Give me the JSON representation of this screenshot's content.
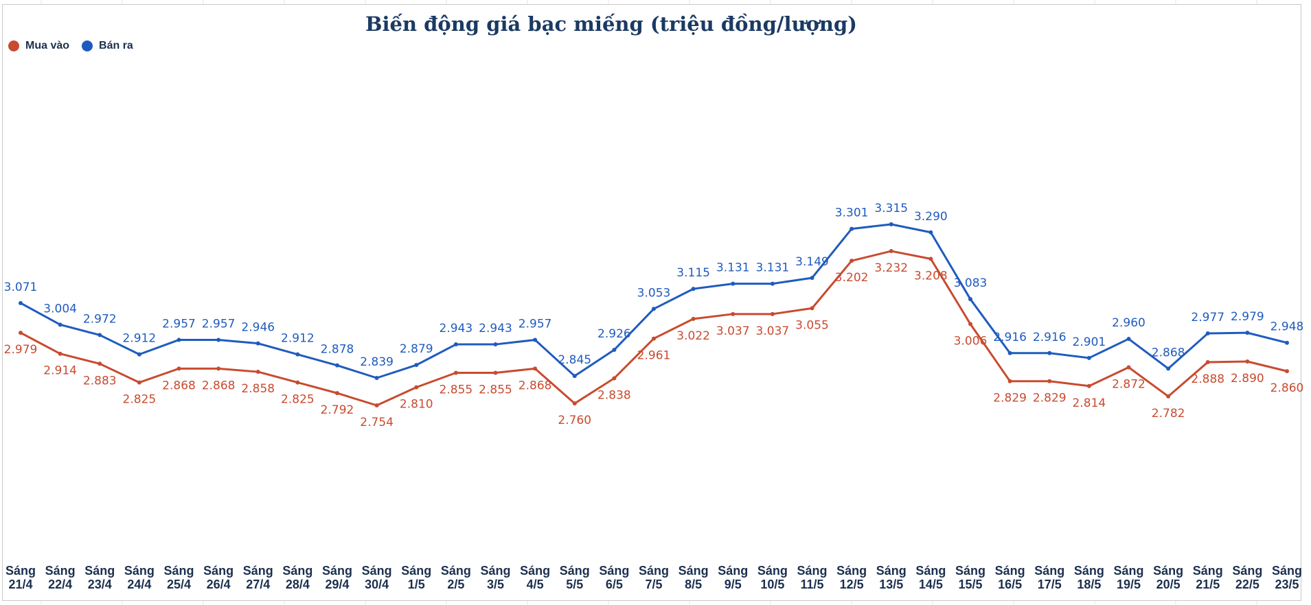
{
  "chart_data": {
    "type": "line",
    "title": "Biến động giá bạc miếng (triệu đồng/lượng)",
    "xlabel": "",
    "ylabel": "",
    "grid": false,
    "legend_position": "top-left",
    "categories": [
      [
        "Sáng",
        "21/4"
      ],
      [
        "Sáng",
        "22/4"
      ],
      [
        "Sáng",
        "23/4"
      ],
      [
        "Sáng",
        "24/4"
      ],
      [
        "Sáng",
        "25/4"
      ],
      [
        "Sáng",
        "26/4"
      ],
      [
        "Sáng",
        "27/4"
      ],
      [
        "Sáng",
        "28/4"
      ],
      [
        "Sáng",
        "29/4"
      ],
      [
        "Sáng",
        "30/4"
      ],
      [
        "Sáng",
        "1/5"
      ],
      [
        "Sáng",
        "2/5"
      ],
      [
        "Sáng",
        "3/5"
      ],
      [
        "Sáng",
        "4/5"
      ],
      [
        "Sáng",
        "5/5"
      ],
      [
        "Sáng",
        "6/5"
      ],
      [
        "Sáng",
        "7/5"
      ],
      [
        "Sáng",
        "8/5"
      ],
      [
        "Sáng",
        "9/5"
      ],
      [
        "Sáng",
        "10/5"
      ],
      [
        "Sáng",
        "11/5"
      ],
      [
        "Sáng",
        "12/5"
      ],
      [
        "Sáng",
        "13/5"
      ],
      [
        "Sáng",
        "14/5"
      ],
      [
        "Sáng",
        "15/5"
      ],
      [
        "Sáng",
        "16/5"
      ],
      [
        "Sáng",
        "17/5"
      ],
      [
        "Sáng",
        "18/5"
      ],
      [
        "Sáng",
        "19/5"
      ],
      [
        "Sáng",
        "20/5"
      ],
      [
        "Sáng",
        "21/5"
      ],
      [
        "Sáng",
        "22/5"
      ],
      [
        "Sáng",
        "23/5"
      ]
    ],
    "series": [
      {
        "name": "Mua vào",
        "color": "#c84b2f",
        "values": [
          2.979,
          2.914,
          2.883,
          2.825,
          2.868,
          2.868,
          2.858,
          2.825,
          2.792,
          2.754,
          2.81,
          2.855,
          2.855,
          2.868,
          2.76,
          2.838,
          2.961,
          3.022,
          3.037,
          3.037,
          3.055,
          3.202,
          3.232,
          3.208,
          3.006,
          2.829,
          2.829,
          2.814,
          2.872,
          2.782,
          2.888,
          2.89,
          2.86
        ],
        "labels": [
          "2.979",
          "2.914",
          "2.883",
          "2.825",
          "2.868",
          "2.868",
          "2.858",
          "2.825",
          "2.792",
          "2.754",
          "2.810",
          "2.855",
          "2.855",
          "2.868",
          "2.760",
          "2.838",
          "2.961",
          "3.022",
          "3.037",
          "3.037",
          "3.055",
          "3.202",
          "3.232",
          "3.208",
          "3.006",
          "2.829",
          "2.829",
          "2.814",
          "2.872",
          "2.782",
          "2.888",
          "2.890",
          "2.860"
        ]
      },
      {
        "name": "Bán ra",
        "color": "#1f5bbf",
        "values": [
          3.071,
          3.004,
          2.972,
          2.912,
          2.957,
          2.957,
          2.946,
          2.912,
          2.878,
          2.839,
          2.879,
          2.943,
          2.943,
          2.957,
          2.845,
          2.926,
          3.053,
          3.115,
          3.131,
          3.131,
          3.149,
          3.301,
          3.315,
          3.29,
          3.083,
          2.916,
          2.916,
          2.901,
          2.96,
          2.868,
          2.977,
          2.979,
          2.948
        ],
        "labels": [
          "3.071",
          "3.004",
          "2.972",
          "2.912",
          "2.957",
          "2.957",
          "2.946",
          "2.912",
          "2.878",
          "2.839",
          "2.879",
          "2.943",
          "2.943",
          "2.957",
          "2.845",
          "2.926",
          "3.053",
          "3.115",
          "3.131",
          "3.131",
          "3.149",
          "3.301",
          "3.315",
          "3.290",
          "3.083",
          "2.916",
          "2.916",
          "2.901",
          "2.960",
          "2.868",
          "2.977",
          "2.979",
          "2.948"
        ]
      }
    ]
  }
}
